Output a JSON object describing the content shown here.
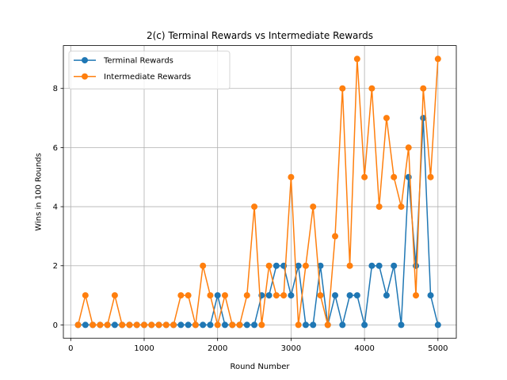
{
  "chart_data": {
    "type": "line",
    "title": "2(c) Terminal Rewards vs Intermediate Rewards",
    "xlabel": "Round Number",
    "ylabel": "Wins in 100 Rounds",
    "xlim": [
      -100,
      5250
    ],
    "ylim": [
      -0.45,
      9.45
    ],
    "xticks": [
      0,
      1000,
      2000,
      3000,
      4000,
      5000
    ],
    "yticks": [
      0,
      2,
      4,
      6,
      8
    ],
    "grid": true,
    "legend_position": "upper-left",
    "x": [
      100,
      200,
      300,
      400,
      500,
      600,
      700,
      800,
      900,
      1000,
      1100,
      1200,
      1300,
      1400,
      1500,
      1600,
      1700,
      1800,
      1900,
      2000,
      2100,
      2200,
      2300,
      2400,
      2500,
      2600,
      2700,
      2800,
      2900,
      3000,
      3100,
      3200,
      3300,
      3400,
      3500,
      3600,
      3700,
      3800,
      3900,
      4000,
      4100,
      4200,
      4300,
      4400,
      4500,
      4600,
      4700,
      4800,
      4900,
      5000
    ],
    "series": [
      {
        "name": "Terminal Rewards",
        "color": "#1f77b4",
        "values": [
          0,
          0,
          0,
          0,
          0,
          0,
          0,
          0,
          0,
          0,
          0,
          0,
          0,
          0,
          0,
          0,
          0,
          0,
          0,
          1,
          0,
          0,
          0,
          0,
          0,
          1,
          1,
          2,
          2,
          1,
          2,
          0,
          0,
          2,
          0,
          1,
          0,
          1,
          1,
          0,
          2,
          2,
          1,
          2,
          0,
          5,
          2,
          7,
          1,
          0
        ]
      },
      {
        "name": "Intermediate Rewards",
        "color": "#ff7f0e",
        "values": [
          0,
          1,
          0,
          0,
          0,
          1,
          0,
          0,
          0,
          0,
          0,
          0,
          0,
          0,
          1,
          1,
          0,
          2,
          1,
          0,
          1,
          0,
          0,
          1,
          4,
          0,
          2,
          1,
          1,
          5,
          0,
          2,
          4,
          1,
          0,
          3,
          8,
          2,
          9,
          5,
          8,
          4,
          7,
          5,
          4,
          6,
          1,
          8,
          5,
          9
        ]
      }
    ]
  }
}
